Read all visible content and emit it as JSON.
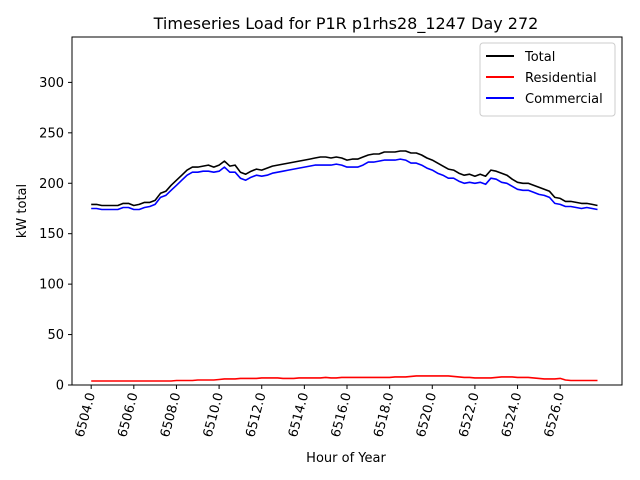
{
  "chart_data": {
    "type": "line",
    "title": "Timeseries Load for P1R p1rhs28_1247  Day 272",
    "xlabel": "Hour of Year",
    "ylabel": "kW total",
    "xlim": [
      6503.1,
      6528.9
    ],
    "ylim": [
      0,
      345
    ],
    "xticks": [
      6504,
      6506,
      6508,
      6510,
      6512,
      6514,
      6516,
      6518,
      6520,
      6522,
      6524,
      6526
    ],
    "xtick_labels": [
      "6504.0",
      "6506.0",
      "6508.0",
      "6510.0",
      "6512.0",
      "6514.0",
      "6516.0",
      "6518.0",
      "6520.0",
      "6522.0",
      "6524.0",
      "6526.0"
    ],
    "yticks": [
      0,
      50,
      100,
      150,
      200,
      250,
      300
    ],
    "ytick_labels": [
      "0",
      "50",
      "100",
      "150",
      "200",
      "250",
      "300"
    ],
    "grid": false,
    "legend_position": "top-right",
    "x": [
      6504.0,
      6504.25,
      6504.5,
      6504.75,
      6505.0,
      6505.25,
      6505.5,
      6505.75,
      6506.0,
      6506.25,
      6506.5,
      6506.75,
      6507.0,
      6507.25,
      6507.5,
      6507.75,
      6508.0,
      6508.25,
      6508.5,
      6508.75,
      6509.0,
      6509.25,
      6509.5,
      6509.75,
      6510.0,
      6510.25,
      6510.5,
      6510.75,
      6511.0,
      6511.25,
      6511.5,
      6511.75,
      6512.0,
      6512.25,
      6512.5,
      6512.75,
      6513.0,
      6513.25,
      6513.5,
      6513.75,
      6514.0,
      6514.25,
      6514.5,
      6514.75,
      6515.0,
      6515.25,
      6515.5,
      6515.75,
      6516.0,
      6516.25,
      6516.5,
      6516.75,
      6517.0,
      6517.25,
      6517.5,
      6517.75,
      6518.0,
      6518.25,
      6518.5,
      6518.75,
      6519.0,
      6519.25,
      6519.5,
      6519.75,
      6520.0,
      6520.25,
      6520.5,
      6520.75,
      6521.0,
      6521.25,
      6521.5,
      6521.75,
      6522.0,
      6522.25,
      6522.5,
      6522.75,
      6523.0,
      6523.25,
      6523.5,
      6523.75,
      6524.0,
      6524.25,
      6524.5,
      6524.75,
      6525.0,
      6525.25,
      6525.5,
      6525.75,
      6526.0,
      6526.25,
      6526.5,
      6526.75,
      6527.0,
      6527.25,
      6527.5,
      6527.75
    ],
    "series": [
      {
        "name": "Total",
        "color": "#000000",
        "values": [
          179,
          179,
          178,
          178,
          178,
          178,
          180,
          180,
          178,
          179,
          181,
          181,
          183,
          190,
          192,
          198,
          203,
          208,
          213,
          216,
          216,
          217,
          218,
          216,
          218,
          222,
          217,
          218,
          211,
          209,
          212,
          214,
          213,
          215,
          217,
          218,
          219,
          220,
          221,
          222,
          223,
          224,
          225,
          226,
          226,
          225,
          226,
          225,
          223,
          224,
          224,
          226,
          228,
          229,
          229,
          231,
          231,
          231,
          232,
          232,
          230,
          230,
          228,
          225,
          223,
          220,
          217,
          214,
          213,
          210,
          208,
          209,
          207,
          209,
          207,
          213,
          212,
          210,
          208,
          204,
          201,
          200,
          200,
          198,
          196,
          194,
          192,
          186,
          185,
          182,
          182,
          181,
          180,
          180,
          179,
          178
        ]
      },
      {
        "name": "Residential",
        "color": "#ff0000",
        "values": [
          4,
          4,
          4,
          4,
          4,
          4,
          4,
          4,
          4,
          4,
          4,
          4,
          4,
          4,
          4,
          4,
          4.5,
          4.5,
          4.5,
          4.5,
          5,
          5,
          5,
          5,
          5.5,
          6,
          6,
          6,
          6.5,
          6.5,
          6.5,
          6.5,
          7,
          7,
          7,
          7,
          6.5,
          6.5,
          6.5,
          7,
          7,
          7,
          7,
          7,
          7.5,
          7,
          7,
          7.5,
          7.5,
          7.5,
          7.5,
          7.5,
          7.5,
          7.5,
          7.5,
          7.5,
          7.5,
          8,
          8,
          8,
          8.5,
          9,
          9,
          9,
          9,
          9,
          9,
          9,
          8.5,
          8,
          7.5,
          7.5,
          7,
          7,
          7,
          7,
          7.5,
          8,
          8,
          8,
          7.5,
          7.5,
          7.5,
          7,
          6.5,
          6,
          6,
          6,
          6.5,
          5,
          4.5,
          4.5,
          4.5,
          4.5,
          4.5,
          4.5
        ]
      },
      {
        "name": "Commercial",
        "color": "#0000ff",
        "values": [
          175,
          175,
          174,
          174,
          174,
          174,
          176,
          176,
          174,
          174,
          176,
          177,
          179,
          186,
          188,
          193,
          198,
          203,
          208,
          211,
          211,
          212,
          212,
          211,
          212,
          216,
          211,
          211,
          205,
          203,
          206,
          208,
          207,
          208,
          210,
          211,
          212,
          213,
          214,
          215,
          216,
          217,
          218,
          218,
          218,
          218,
          219,
          218,
          216,
          216,
          216,
          218,
          221,
          221,
          222,
          223,
          223,
          223,
          224,
          223,
          220,
          220,
          218,
          215,
          213,
          210,
          208,
          205,
          205,
          202,
          200,
          201,
          200,
          201,
          199,
          205,
          204,
          201,
          200,
          197,
          194,
          193,
          193,
          191,
          189,
          188,
          186,
          180,
          179,
          177,
          177,
          176,
          175,
          176,
          175,
          174
        ]
      }
    ]
  }
}
